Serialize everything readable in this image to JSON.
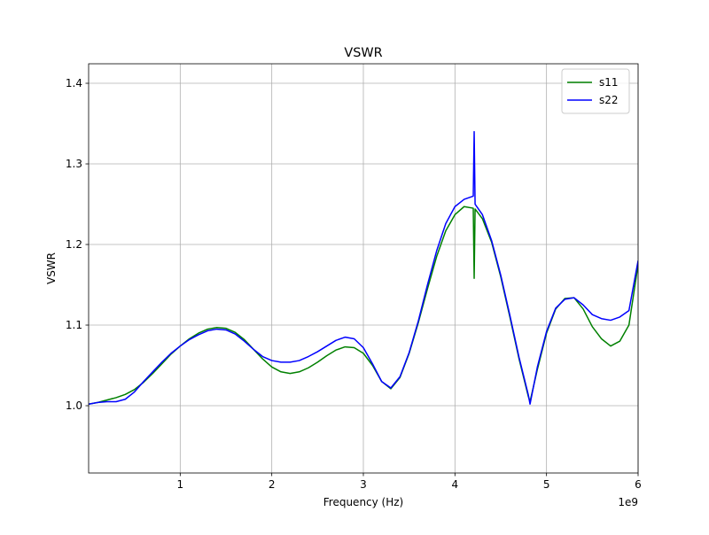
{
  "chart_data": {
    "type": "line",
    "title": "VSWR",
    "xlabel": "Frequency (Hz)",
    "ylabel": "VSWR",
    "x_offset_label": "1e9",
    "x": [
      0,
      100000000.0,
      200000000.0,
      300000000.0,
      400000000.0,
      500000000.0,
      600000000.0,
      700000000.0,
      800000000.0,
      900000000.0,
      1000000000.0,
      1100000000.0,
      1200000000.0,
      1300000000.0,
      1400000000.0,
      1500000000.0,
      1600000000.0,
      1700000000.0,
      1800000000.0,
      1900000000.0,
      2000000000.0,
      2100000000.0,
      2200000000.0,
      2300000000.0,
      2400000000.0,
      2500000000.0,
      2600000000.0,
      2700000000.0,
      2800000000.0,
      2900000000.0,
      3000000000.0,
      3100000000.0,
      3200000000.0,
      3300000000.0,
      3400000000.0,
      3500000000.0,
      3600000000.0,
      3700000000.0,
      3800000000.0,
      3900000000.0,
      4000000000.0,
      4100000000.0,
      4200000000.0,
      4210000000.0,
      4220000000.0,
      4300000000.0,
      4400000000.0,
      4500000000.0,
      4600000000.0,
      4700000000.0,
      4800000000.0,
      4820000000.0,
      4900000000.0,
      5000000000.0,
      5100000000.0,
      5200000000.0,
      5300000000.0,
      5400000000.0,
      5500000000.0,
      5600000000.0,
      5700000000.0,
      5800000000.0,
      5900000000.0,
      6000000000.0
    ],
    "series": [
      {
        "name": "s11",
        "color": "#008000",
        "values": [
          1.002,
          1.004,
          1.007,
          1.01,
          1.014,
          1.02,
          1.029,
          1.04,
          1.052,
          1.064,
          1.074,
          1.083,
          1.09,
          1.095,
          1.097,
          1.096,
          1.091,
          1.082,
          1.07,
          1.058,
          1.048,
          1.042,
          1.04,
          1.042,
          1.047,
          1.054,
          1.062,
          1.069,
          1.073,
          1.072,
          1.065,
          1.05,
          1.03,
          1.021,
          1.035,
          1.065,
          1.103,
          1.145,
          1.185,
          1.217,
          1.237,
          1.247,
          1.245,
          1.158,
          1.244,
          1.232,
          1.203,
          1.16,
          1.11,
          1.058,
          1.012,
          1.005,
          1.045,
          1.09,
          1.12,
          1.133,
          1.134,
          1.12,
          1.098,
          1.083,
          1.074,
          1.08,
          1.1,
          1.175
        ]
      },
      {
        "name": "s22",
        "color": "#0000ff",
        "values": [
          1.002,
          1.004,
          1.005,
          1.005,
          1.008,
          1.017,
          1.03,
          1.042,
          1.054,
          1.065,
          1.074,
          1.082,
          1.088,
          1.093,
          1.095,
          1.094,
          1.089,
          1.08,
          1.07,
          1.061,
          1.056,
          1.054,
          1.054,
          1.056,
          1.061,
          1.067,
          1.074,
          1.081,
          1.085,
          1.083,
          1.072,
          1.052,
          1.03,
          1.022,
          1.036,
          1.066,
          1.105,
          1.15,
          1.192,
          1.226,
          1.247,
          1.256,
          1.26,
          1.34,
          1.25,
          1.237,
          1.205,
          1.162,
          1.112,
          1.06,
          1.014,
          1.002,
          1.048,
          1.092,
          1.121,
          1.132,
          1.134,
          1.125,
          1.113,
          1.108,
          1.106,
          1.11,
          1.118,
          1.18
        ]
      }
    ],
    "xlim": [
      0,
      6000000000.0
    ],
    "xticks": [
      {
        "value": 1000000000.0,
        "label": "1"
      },
      {
        "value": 2000000000.0,
        "label": "2"
      },
      {
        "value": 3000000000.0,
        "label": "3"
      },
      {
        "value": 4000000000.0,
        "label": "4"
      },
      {
        "value": 5000000000.0,
        "label": "5"
      },
      {
        "value": 6000000000.0,
        "label": "6"
      }
    ],
    "ylim": [
      0.9165,
      1.4242
    ],
    "yticks": [
      {
        "value": 1,
        "label": "1.0"
      },
      1.1,
      1.2,
      1.3,
      1.4
    ],
    "grid": true,
    "legend": "upper right"
  }
}
